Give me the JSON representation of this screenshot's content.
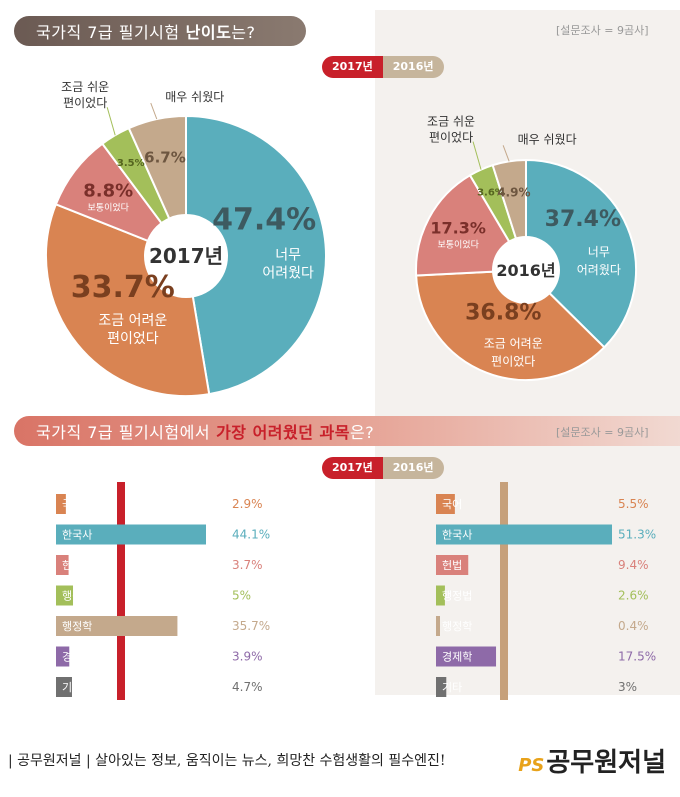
{
  "header1": {
    "title_prefix": "국가직 7급 필기시험 ",
    "title_highlight": "난이도",
    "title_suffix": "는?",
    "survey": "[설문조사 = 9곰사]"
  },
  "header2": {
    "title_prefix": "국가직 7급 필기시험에서 ",
    "title_highlight": "가장 어려웠던 과목",
    "title_suffix": "은?",
    "survey": "[설문조사 = 9곰사]"
  },
  "toggle": {
    "y2017": "2017년",
    "y2016": "2016년"
  },
  "colors": {
    "very_hard": "#5aaebc",
    "somewhat_hard": "#d98452",
    "normal": "#d9817b",
    "somewhat_easy": "#a3bf5a",
    "very_easy": "#c4a98c",
    "red": "#c8202a"
  },
  "chart_data": [
    {
      "type": "pie",
      "center_label": "2017년",
      "categories": [
        "너무 어려웠다",
        "조금 어려운 편이었다",
        "보통이었다",
        "조금 쉬운 편이었다",
        "매우 쉬웠다"
      ],
      "values": [
        47.4,
        33.7,
        8.8,
        3.5,
        6.7
      ],
      "value_labels": [
        "47.4%",
        "33.7%",
        "8.8%",
        "3.5%",
        "6.7%"
      ]
    },
    {
      "type": "pie",
      "center_label": "2016년",
      "categories": [
        "너무 어려웠다",
        "조금 어려운 편이었다",
        "보통이었다",
        "조금 쉬운 편이었다",
        "매우 쉬웠다"
      ],
      "values": [
        37.4,
        36.8,
        17.3,
        3.6,
        4.9
      ],
      "value_labels": [
        "37.4%",
        "36.8%",
        "17.3%",
        "3.6%",
        "4.9%"
      ]
    },
    {
      "type": "bar",
      "year": "2017년",
      "categories": [
        "국어",
        "한국사",
        "헌법",
        "행정법",
        "행정학",
        "경제학",
        "기타"
      ],
      "values": [
        2.9,
        44.1,
        3.7,
        5,
        35.7,
        3.9,
        4.7
      ],
      "value_labels": [
        "2.9%",
        "44.1%",
        "3.7%",
        "5%",
        "35.7%",
        "3.9%",
        "4.7%"
      ],
      "colors": [
        "#d98452",
        "#5aaebc",
        "#d9817b",
        "#a3bf5a",
        "#c4a98c",
        "#8e6aa8",
        "#707070"
      ]
    },
    {
      "type": "bar",
      "year": "2016년",
      "categories": [
        "국어",
        "한국사",
        "헌법",
        "행정법",
        "행정학",
        "경제학",
        "기타"
      ],
      "values": [
        5.5,
        51.3,
        9.4,
        2.6,
        0.4,
        17.5,
        3
      ],
      "value_labels": [
        "5.5%",
        "51.3%",
        "9.4%",
        "2.6%",
        "0.4%",
        "17.5%",
        "3%"
      ],
      "colors": [
        "#d98452",
        "#5aaebc",
        "#d9817b",
        "#a3bf5a",
        "#c4a98c",
        "#8e6aa8",
        "#707070"
      ]
    }
  ],
  "pie_slice_labels": {
    "very_hard": [
      "너무",
      "어려웠다"
    ],
    "somewhat_hard": [
      "조금 어려운",
      "편이었다"
    ],
    "normal": "보통이었다",
    "somewhat_easy": [
      "조금 쉬운",
      "편이었다"
    ],
    "very_easy": "매우 쉬웠다"
  },
  "footer": {
    "text": "| 공무원저널 | 살아있는 정보, 움직이는 뉴스, 희망찬 수험생활의 필수엔진!",
    "logo_mark": "PS",
    "logo_text": "공무원저널"
  }
}
